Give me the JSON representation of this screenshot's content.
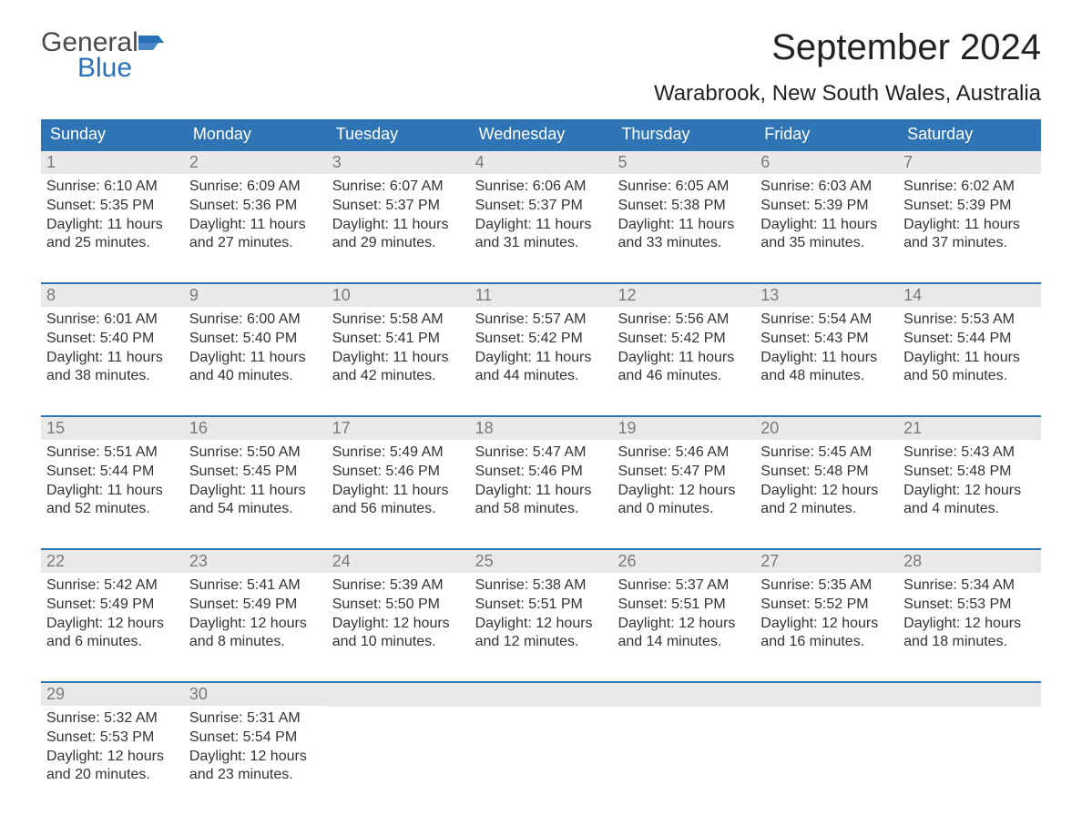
{
  "logo": {
    "general": "General",
    "blue": "Blue",
    "flag_color": "#2971b8"
  },
  "title": "September 2024",
  "location": "Warabrook, New South Wales, Australia",
  "colors": {
    "header_bg": "#2f75b5",
    "header_text": "#ffffff",
    "daynum_bg": "#e9e9e9",
    "daynum_text": "#7a7a7a",
    "body_text": "#333333",
    "row_border": "#2f75b5",
    "background": "#ffffff"
  },
  "typography": {
    "title_fontsize": 40,
    "location_fontsize": 24,
    "header_fontsize": 18,
    "daynum_fontsize": 18,
    "body_fontsize": 16
  },
  "days_of_week": [
    "Sunday",
    "Monday",
    "Tuesday",
    "Wednesday",
    "Thursday",
    "Friday",
    "Saturday"
  ],
  "weeks": [
    [
      {
        "num": "1",
        "sunrise": "Sunrise: 6:10 AM",
        "sunset": "Sunset: 5:35 PM",
        "daylight1": "Daylight: 11 hours",
        "daylight2": "and 25 minutes."
      },
      {
        "num": "2",
        "sunrise": "Sunrise: 6:09 AM",
        "sunset": "Sunset: 5:36 PM",
        "daylight1": "Daylight: 11 hours",
        "daylight2": "and 27 minutes."
      },
      {
        "num": "3",
        "sunrise": "Sunrise: 6:07 AM",
        "sunset": "Sunset: 5:37 PM",
        "daylight1": "Daylight: 11 hours",
        "daylight2": "and 29 minutes."
      },
      {
        "num": "4",
        "sunrise": "Sunrise: 6:06 AM",
        "sunset": "Sunset: 5:37 PM",
        "daylight1": "Daylight: 11 hours",
        "daylight2": "and 31 minutes."
      },
      {
        "num": "5",
        "sunrise": "Sunrise: 6:05 AM",
        "sunset": "Sunset: 5:38 PM",
        "daylight1": "Daylight: 11 hours",
        "daylight2": "and 33 minutes."
      },
      {
        "num": "6",
        "sunrise": "Sunrise: 6:03 AM",
        "sunset": "Sunset: 5:39 PM",
        "daylight1": "Daylight: 11 hours",
        "daylight2": "and 35 minutes."
      },
      {
        "num": "7",
        "sunrise": "Sunrise: 6:02 AM",
        "sunset": "Sunset: 5:39 PM",
        "daylight1": "Daylight: 11 hours",
        "daylight2": "and 37 minutes."
      }
    ],
    [
      {
        "num": "8",
        "sunrise": "Sunrise: 6:01 AM",
        "sunset": "Sunset: 5:40 PM",
        "daylight1": "Daylight: 11 hours",
        "daylight2": "and 38 minutes."
      },
      {
        "num": "9",
        "sunrise": "Sunrise: 6:00 AM",
        "sunset": "Sunset: 5:40 PM",
        "daylight1": "Daylight: 11 hours",
        "daylight2": "and 40 minutes."
      },
      {
        "num": "10",
        "sunrise": "Sunrise: 5:58 AM",
        "sunset": "Sunset: 5:41 PM",
        "daylight1": "Daylight: 11 hours",
        "daylight2": "and 42 minutes."
      },
      {
        "num": "11",
        "sunrise": "Sunrise: 5:57 AM",
        "sunset": "Sunset: 5:42 PM",
        "daylight1": "Daylight: 11 hours",
        "daylight2": "and 44 minutes."
      },
      {
        "num": "12",
        "sunrise": "Sunrise: 5:56 AM",
        "sunset": "Sunset: 5:42 PM",
        "daylight1": "Daylight: 11 hours",
        "daylight2": "and 46 minutes."
      },
      {
        "num": "13",
        "sunrise": "Sunrise: 5:54 AM",
        "sunset": "Sunset: 5:43 PM",
        "daylight1": "Daylight: 11 hours",
        "daylight2": "and 48 minutes."
      },
      {
        "num": "14",
        "sunrise": "Sunrise: 5:53 AM",
        "sunset": "Sunset: 5:44 PM",
        "daylight1": "Daylight: 11 hours",
        "daylight2": "and 50 minutes."
      }
    ],
    [
      {
        "num": "15",
        "sunrise": "Sunrise: 5:51 AM",
        "sunset": "Sunset: 5:44 PM",
        "daylight1": "Daylight: 11 hours",
        "daylight2": "and 52 minutes."
      },
      {
        "num": "16",
        "sunrise": "Sunrise: 5:50 AM",
        "sunset": "Sunset: 5:45 PM",
        "daylight1": "Daylight: 11 hours",
        "daylight2": "and 54 minutes."
      },
      {
        "num": "17",
        "sunrise": "Sunrise: 5:49 AM",
        "sunset": "Sunset: 5:46 PM",
        "daylight1": "Daylight: 11 hours",
        "daylight2": "and 56 minutes."
      },
      {
        "num": "18",
        "sunrise": "Sunrise: 5:47 AM",
        "sunset": "Sunset: 5:46 PM",
        "daylight1": "Daylight: 11 hours",
        "daylight2": "and 58 minutes."
      },
      {
        "num": "19",
        "sunrise": "Sunrise: 5:46 AM",
        "sunset": "Sunset: 5:47 PM",
        "daylight1": "Daylight: 12 hours",
        "daylight2": "and 0 minutes."
      },
      {
        "num": "20",
        "sunrise": "Sunrise: 5:45 AM",
        "sunset": "Sunset: 5:48 PM",
        "daylight1": "Daylight: 12 hours",
        "daylight2": "and 2 minutes."
      },
      {
        "num": "21",
        "sunrise": "Sunrise: 5:43 AM",
        "sunset": "Sunset: 5:48 PM",
        "daylight1": "Daylight: 12 hours",
        "daylight2": "and 4 minutes."
      }
    ],
    [
      {
        "num": "22",
        "sunrise": "Sunrise: 5:42 AM",
        "sunset": "Sunset: 5:49 PM",
        "daylight1": "Daylight: 12 hours",
        "daylight2": "and 6 minutes."
      },
      {
        "num": "23",
        "sunrise": "Sunrise: 5:41 AM",
        "sunset": "Sunset: 5:49 PM",
        "daylight1": "Daylight: 12 hours",
        "daylight2": "and 8 minutes."
      },
      {
        "num": "24",
        "sunrise": "Sunrise: 5:39 AM",
        "sunset": "Sunset: 5:50 PM",
        "daylight1": "Daylight: 12 hours",
        "daylight2": "and 10 minutes."
      },
      {
        "num": "25",
        "sunrise": "Sunrise: 5:38 AM",
        "sunset": "Sunset: 5:51 PM",
        "daylight1": "Daylight: 12 hours",
        "daylight2": "and 12 minutes."
      },
      {
        "num": "26",
        "sunrise": "Sunrise: 5:37 AM",
        "sunset": "Sunset: 5:51 PM",
        "daylight1": "Daylight: 12 hours",
        "daylight2": "and 14 minutes."
      },
      {
        "num": "27",
        "sunrise": "Sunrise: 5:35 AM",
        "sunset": "Sunset: 5:52 PM",
        "daylight1": "Daylight: 12 hours",
        "daylight2": "and 16 minutes."
      },
      {
        "num": "28",
        "sunrise": "Sunrise: 5:34 AM",
        "sunset": "Sunset: 5:53 PM",
        "daylight1": "Daylight: 12 hours",
        "daylight2": "and 18 minutes."
      }
    ],
    [
      {
        "num": "29",
        "sunrise": "Sunrise: 5:32 AM",
        "sunset": "Sunset: 5:53 PM",
        "daylight1": "Daylight: 12 hours",
        "daylight2": "and 20 minutes."
      },
      {
        "num": "30",
        "sunrise": "Sunrise: 5:31 AM",
        "sunset": "Sunset: 5:54 PM",
        "daylight1": "Daylight: 12 hours",
        "daylight2": "and 23 minutes."
      },
      null,
      null,
      null,
      null,
      null
    ]
  ]
}
